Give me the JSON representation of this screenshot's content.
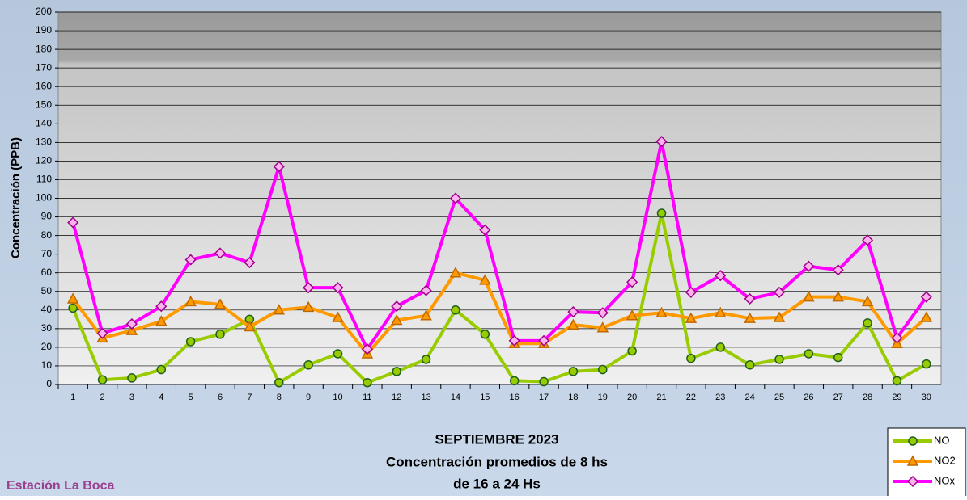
{
  "chart_data": {
    "type": "line",
    "title_lines": [
      "SEPTIEMBRE 2023",
      "Concentración promedios de 8 hs",
      "de 16 a 24 Hs"
    ],
    "y_label": "Concentración  (PPB)",
    "annotation": "Estación La Boca",
    "categories": [
      "1",
      "2",
      "3",
      "4",
      "5",
      "6",
      "7",
      "8",
      "9",
      "10",
      "11",
      "12",
      "13",
      "14",
      "15",
      "16",
      "17",
      "18",
      "19",
      "20",
      "21",
      "22",
      "23",
      "24",
      "25",
      "26",
      "27",
      "28",
      "29",
      "30"
    ],
    "series": [
      {
        "name": "NO",
        "color": "#99cc00",
        "marker": "circle",
        "values": [
          41,
          2.5,
          3.5,
          8,
          23,
          27,
          35,
          1,
          10.5,
          16.5,
          1,
          7,
          13.5,
          40,
          27,
          2,
          1.5,
          7,
          8,
          18,
          92,
          14,
          20,
          10.5,
          13.5,
          16.5,
          14.5,
          33,
          2,
          11
        ]
      },
      {
        "name": "NO2",
        "color": "#ff9900",
        "marker": "triangle",
        "values": [
          46,
          25,
          29,
          34,
          44.5,
          43,
          31,
          40,
          41.5,
          36,
          16.5,
          34.5,
          37,
          60,
          56,
          22,
          22,
          32,
          30.5,
          37,
          38.5,
          35.5,
          38.5,
          35.5,
          36,
          47,
          47,
          44.5,
          22,
          36
        ]
      },
      {
        "name": "NOx",
        "color": "#ff00ff",
        "marker": "diamond",
        "values": [
          87,
          27.5,
          32.5,
          42,
          67,
          70.5,
          65.5,
          117,
          52,
          52,
          19,
          42,
          50.5,
          100,
          83,
          23.5,
          23.5,
          39,
          38.5,
          55,
          130.5,
          49.5,
          58.5,
          46,
          49.5,
          63.5,
          61.5,
          77.5,
          25,
          47
        ]
      }
    ],
    "ylim": [
      0,
      200
    ],
    "yticks": [
      0,
      10,
      20,
      30,
      40,
      50,
      60,
      70,
      80,
      90,
      100,
      110,
      120,
      130,
      140,
      150,
      160,
      170,
      180,
      190,
      200
    ],
    "grid": true,
    "legend": "bottom-right"
  }
}
